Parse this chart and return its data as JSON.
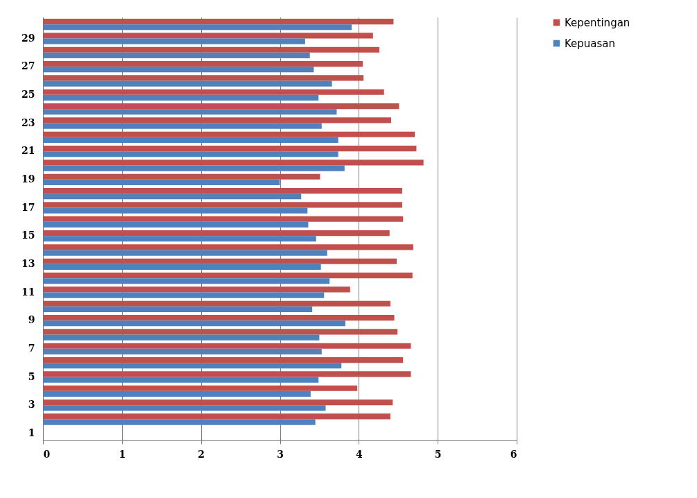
{
  "chart_data": {
    "type": "bar",
    "orientation": "horizontal",
    "categories": [
      null,
      "29",
      null,
      "27",
      null,
      "25",
      null,
      "23",
      null,
      "21",
      null,
      "19",
      null,
      "17",
      null,
      "15",
      null,
      "13",
      null,
      "11",
      null,
      "9",
      null,
      "7",
      null,
      "5",
      null,
      "3",
      null,
      "1"
    ],
    "series": [
      {
        "name": "Kepentingan",
        "color": "#c0504d",
        "values": [
          4.44,
          4.18,
          4.26,
          4.05,
          4.06,
          4.32,
          4.51,
          4.41,
          4.71,
          4.73,
          4.82,
          3.51,
          4.55,
          4.55,
          4.56,
          4.39,
          4.69,
          4.48,
          4.68,
          3.89,
          4.4,
          4.45,
          4.49,
          4.66,
          4.56,
          4.66,
          3.98,
          4.43,
          4.4,
          null
        ]
      },
      {
        "name": "Kepuasan",
        "color": "#4f81bd",
        "values": [
          3.91,
          3.32,
          3.38,
          3.43,
          3.66,
          3.49,
          3.72,
          3.53,
          3.74,
          3.74,
          3.82,
          3.0,
          3.27,
          3.35,
          3.36,
          3.46,
          3.6,
          3.52,
          3.63,
          3.56,
          3.41,
          3.83,
          3.5,
          3.53,
          3.78,
          3.49,
          3.39,
          3.58,
          3.45,
          null
        ]
      }
    ],
    "xlim": [
      0,
      6
    ],
    "xticks": [
      0,
      1,
      2,
      3,
      4,
      5,
      6
    ],
    "grid": "x",
    "legend": "right"
  }
}
